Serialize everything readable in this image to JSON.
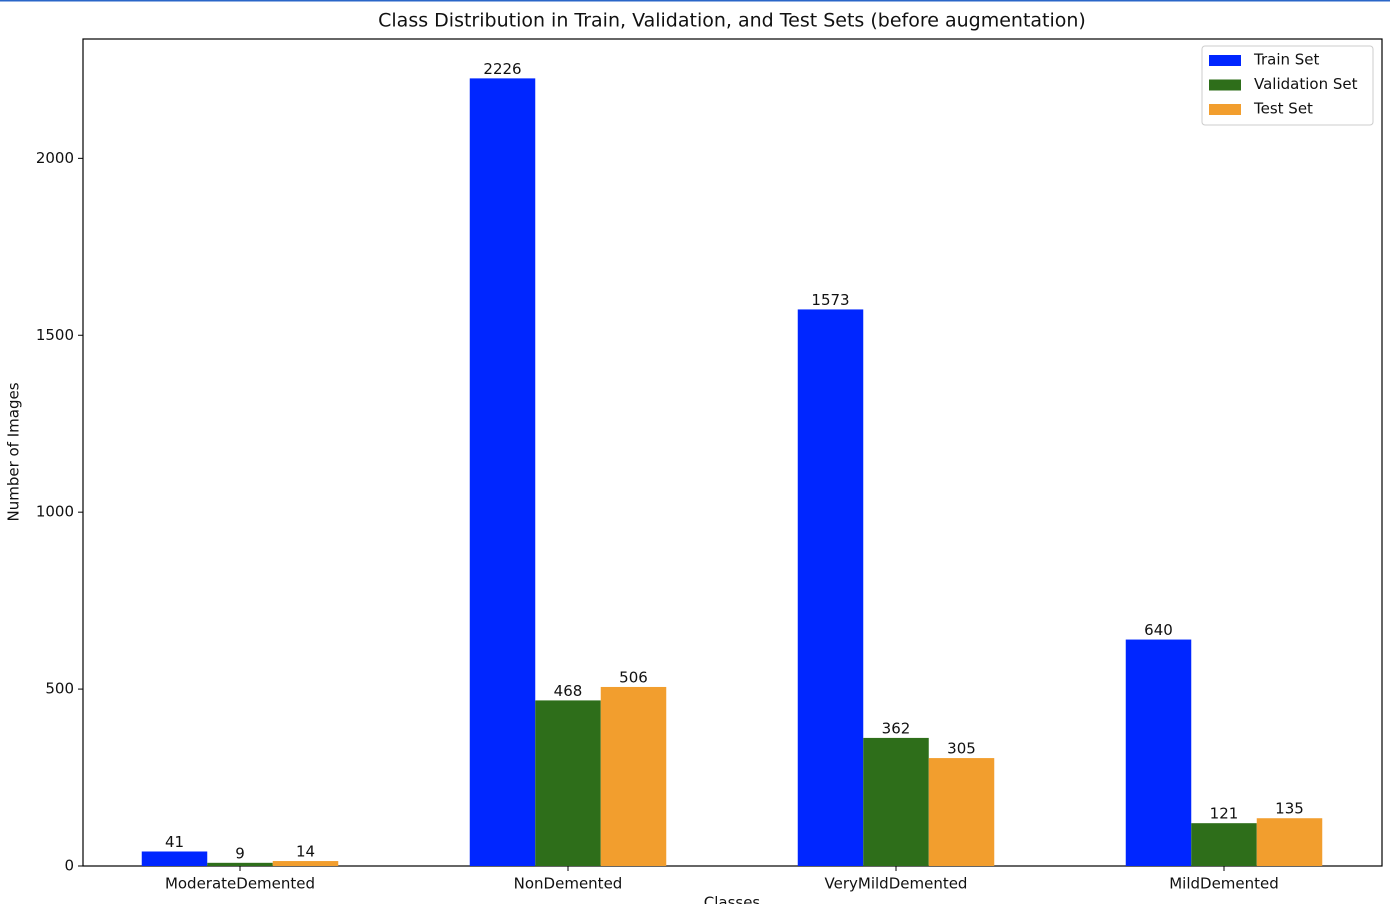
{
  "chart_data": {
    "type": "bar",
    "title": "Class Distribution in Train, Validation, and Test Sets (before augmentation)",
    "x_label": "Classes",
    "y_label": "Number of Images",
    "categories": [
      "ModerateDemented",
      "NonDemented",
      "VeryMildDemented",
      "MildDemented"
    ],
    "series": [
      {
        "name": "Train Set",
        "color": "#0026ff",
        "values": [
          41,
          2226,
          1573,
          640
        ]
      },
      {
        "name": "Validation Set",
        "color": "#2e6e1a",
        "values": [
          9,
          468,
          362,
          121
        ]
      },
      {
        "name": "Test Set",
        "color": "#f29e2e",
        "values": [
          14,
          506,
          305,
          135
        ]
      }
    ],
    "ylim": [
      0,
      2337.3
    ],
    "yticks": [
      0,
      500,
      1000,
      1500,
      2000
    ],
    "legend": "upper right",
    "grid": false
  }
}
